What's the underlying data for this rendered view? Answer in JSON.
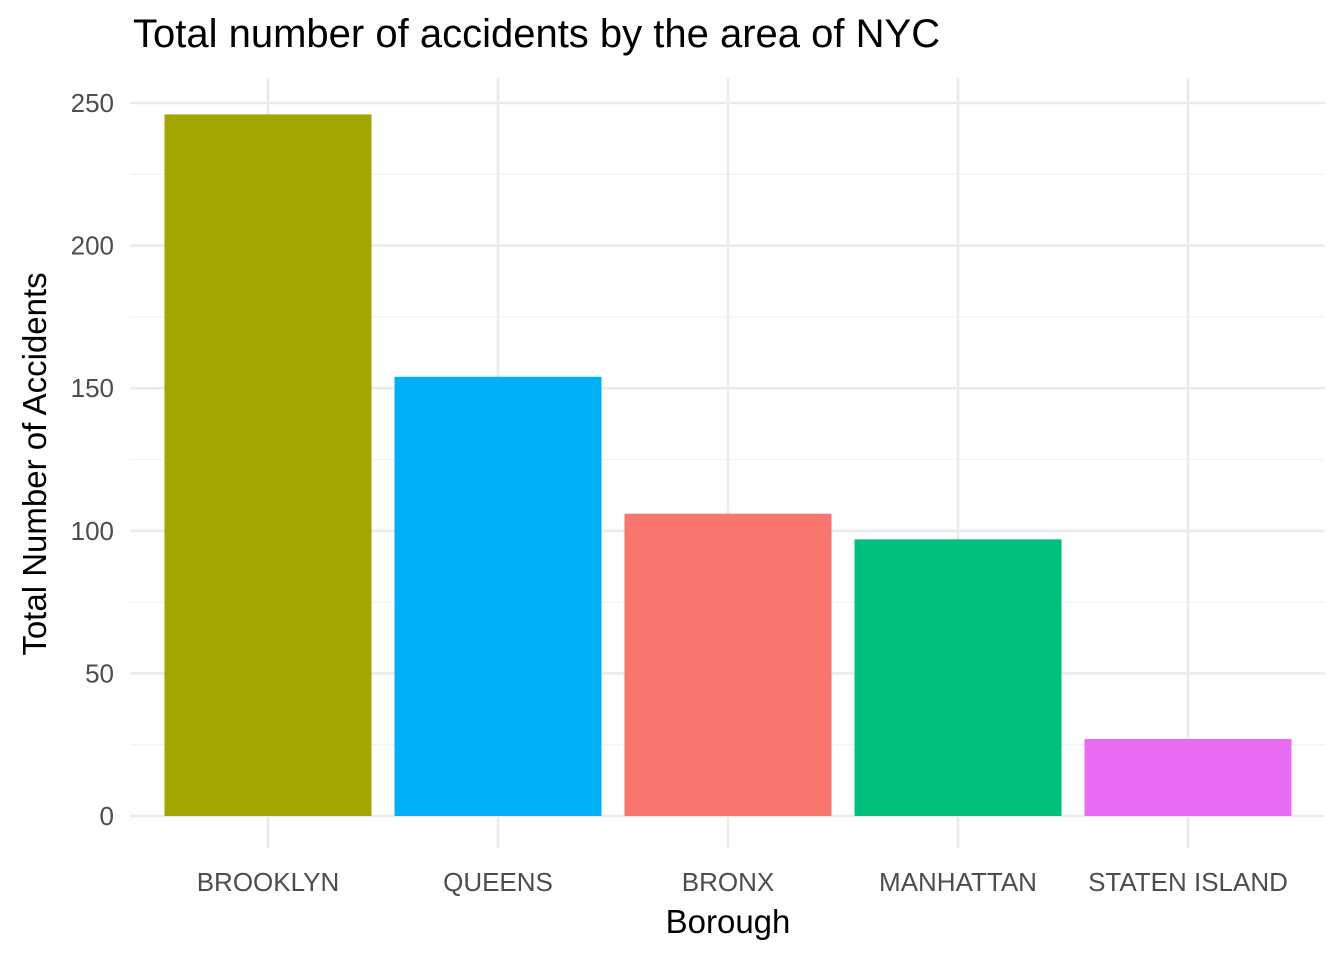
{
  "chart_data": {
    "type": "bar",
    "title": "Total number of accidents by the area of NYC",
    "xlabel": "Borough",
    "ylabel": "Total Number of Accidents",
    "categories": [
      "BROOKLYN",
      "QUEENS",
      "BRONX",
      "MANHATTAN",
      "STATEN ISLAND"
    ],
    "values": [
      246,
      154,
      106,
      97,
      27
    ],
    "colors": [
      "#A3A500",
      "#00B0F6",
      "#F8766D",
      "#00BF7D",
      "#E76BF3"
    ],
    "ylim": [
      0,
      250
    ],
    "yticks": [
      0,
      50,
      100,
      150,
      200,
      250
    ],
    "ytick_labels": [
      "0",
      "50",
      "100",
      "150",
      "200",
      "250"
    ],
    "grid": true,
    "legend": "none"
  }
}
